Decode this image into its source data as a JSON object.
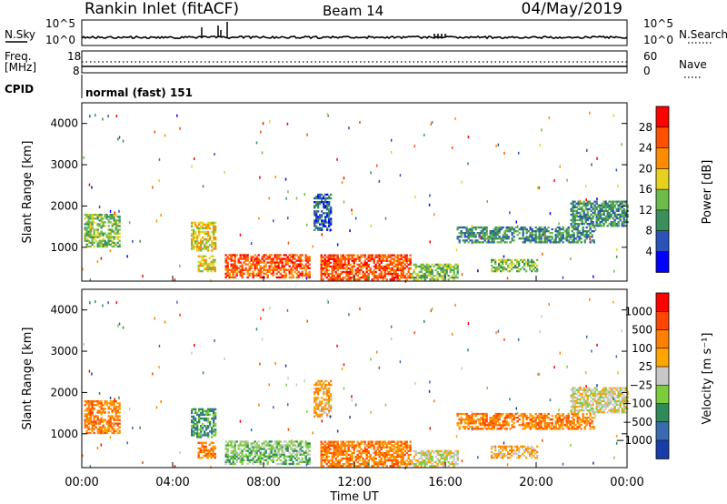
{
  "header": {
    "station": "Rankin Inlet (fitACF)",
    "beam": "Beam 14",
    "date": "04/May/2019"
  },
  "strip": {
    "nsky_label": "N.Sky",
    "nsky_ticks": [
      "10^5",
      "10^0"
    ],
    "nsearch_label": "N.Search",
    "nsearch_ticks": [
      "10^5",
      "10^0"
    ],
    "freq_label": "Freq.",
    "freq_unit": "[MHz]",
    "freq_ticks": [
      "18",
      "8"
    ],
    "nave_label": "Nave",
    "nave_ticks": [
      "60",
      "0"
    ],
    "cpid_label": "CPID",
    "cpid_value": "normal (fast) 151"
  },
  "chart_data": [
    {
      "type": "heatmap",
      "panel": "power",
      "ylabel": "Slant Range [km]",
      "yticks": [
        1000,
        2000,
        3000,
        4000
      ],
      "ylim": [
        180,
        4500
      ],
      "xlim": [
        0,
        24
      ],
      "colorbar_label": "Power [dB]",
      "colorbar_ticks": [
        4,
        8,
        12,
        16,
        20,
        24,
        28
      ],
      "colors": [
        "#0000ff",
        "#2a52b8",
        "#3a8f5a",
        "#6dbb4a",
        "#e6d21e",
        "#ff8c00",
        "#ff5000",
        "#ff0000"
      ],
      "echo_regions": [
        {
          "t0": 0.1,
          "t1": 1.7,
          "r0": 1000,
          "r1": 1800,
          "level": 3
        },
        {
          "t0": 4.8,
          "t1": 5.9,
          "r0": 900,
          "r1": 1600,
          "level": 4
        },
        {
          "t0": 5.1,
          "t1": 5.9,
          "r0": 400,
          "r1": 800,
          "level": 4
        },
        {
          "t0": 6.3,
          "t1": 10.0,
          "r0": 250,
          "r1": 800,
          "level": 6
        },
        {
          "t0": 10.5,
          "t1": 14.5,
          "r0": 200,
          "r1": 800,
          "level": 6
        },
        {
          "t0": 14.5,
          "t1": 16.5,
          "r0": 200,
          "r1": 600,
          "level": 3
        },
        {
          "t0": 16.5,
          "t1": 22.5,
          "r0": 1100,
          "r1": 1500,
          "level": 2
        },
        {
          "t0": 18.0,
          "t1": 20.0,
          "r0": 400,
          "r1": 700,
          "level": 3
        },
        {
          "t0": 21.5,
          "t1": 24.0,
          "r0": 1500,
          "r1": 2100,
          "level": 2
        },
        {
          "t0": 10.2,
          "t1": 11.0,
          "r0": 1400,
          "r1": 2300,
          "level": 1
        }
      ]
    },
    {
      "type": "heatmap",
      "panel": "velocity",
      "ylabel": "Slant Range [km]",
      "yticks": [
        1000,
        2000,
        3000,
        4000
      ],
      "ylim": [
        180,
        4500
      ],
      "xlim": [
        0,
        24
      ],
      "xlabel": "Time UT",
      "xticks": [
        "00:00",
        "04:00",
        "08:00",
        "12:00",
        "16:00",
        "20:00",
        "00:00"
      ],
      "colorbar_label": "Velocity [m s⁻¹]",
      "colorbar_ticks": [
        "1000",
        "500",
        "100",
        "25",
        "−25",
        "−100",
        "−500",
        "−1000"
      ],
      "colors": [
        "#1a3caa",
        "#3a6ab0",
        "#2e8b57",
        "#7ccd3c",
        "#c8c8c8",
        "#ffa500",
        "#ff7f00",
        "#ff4500",
        "#ff0000"
      ],
      "echo_regions": [
        {
          "t0": 0.1,
          "t1": 1.7,
          "r0": 1000,
          "r1": 1800,
          "level": 6
        },
        {
          "t0": 4.8,
          "t1": 5.9,
          "r0": 900,
          "r1": 1600,
          "level": 2
        },
        {
          "t0": 5.1,
          "t1": 5.9,
          "r0": 400,
          "r1": 800,
          "level": 6
        },
        {
          "t0": 6.3,
          "t1": 10.0,
          "r0": 250,
          "r1": 800,
          "level": 3
        },
        {
          "t0": 10.5,
          "t1": 14.5,
          "r0": 200,
          "r1": 800,
          "level": 6
        },
        {
          "t0": 14.5,
          "t1": 16.5,
          "r0": 200,
          "r1": 600,
          "level": 4
        },
        {
          "t0": 16.5,
          "t1": 22.5,
          "r0": 1100,
          "r1": 1500,
          "level": 6
        },
        {
          "t0": 18.0,
          "t1": 20.0,
          "r0": 400,
          "r1": 700,
          "level": 5
        },
        {
          "t0": 21.5,
          "t1": 24.0,
          "r0": 1500,
          "r1": 2100,
          "level": 4
        },
        {
          "t0": 10.2,
          "t1": 11.0,
          "r0": 1400,
          "r1": 2300,
          "level": 5
        }
      ]
    }
  ]
}
